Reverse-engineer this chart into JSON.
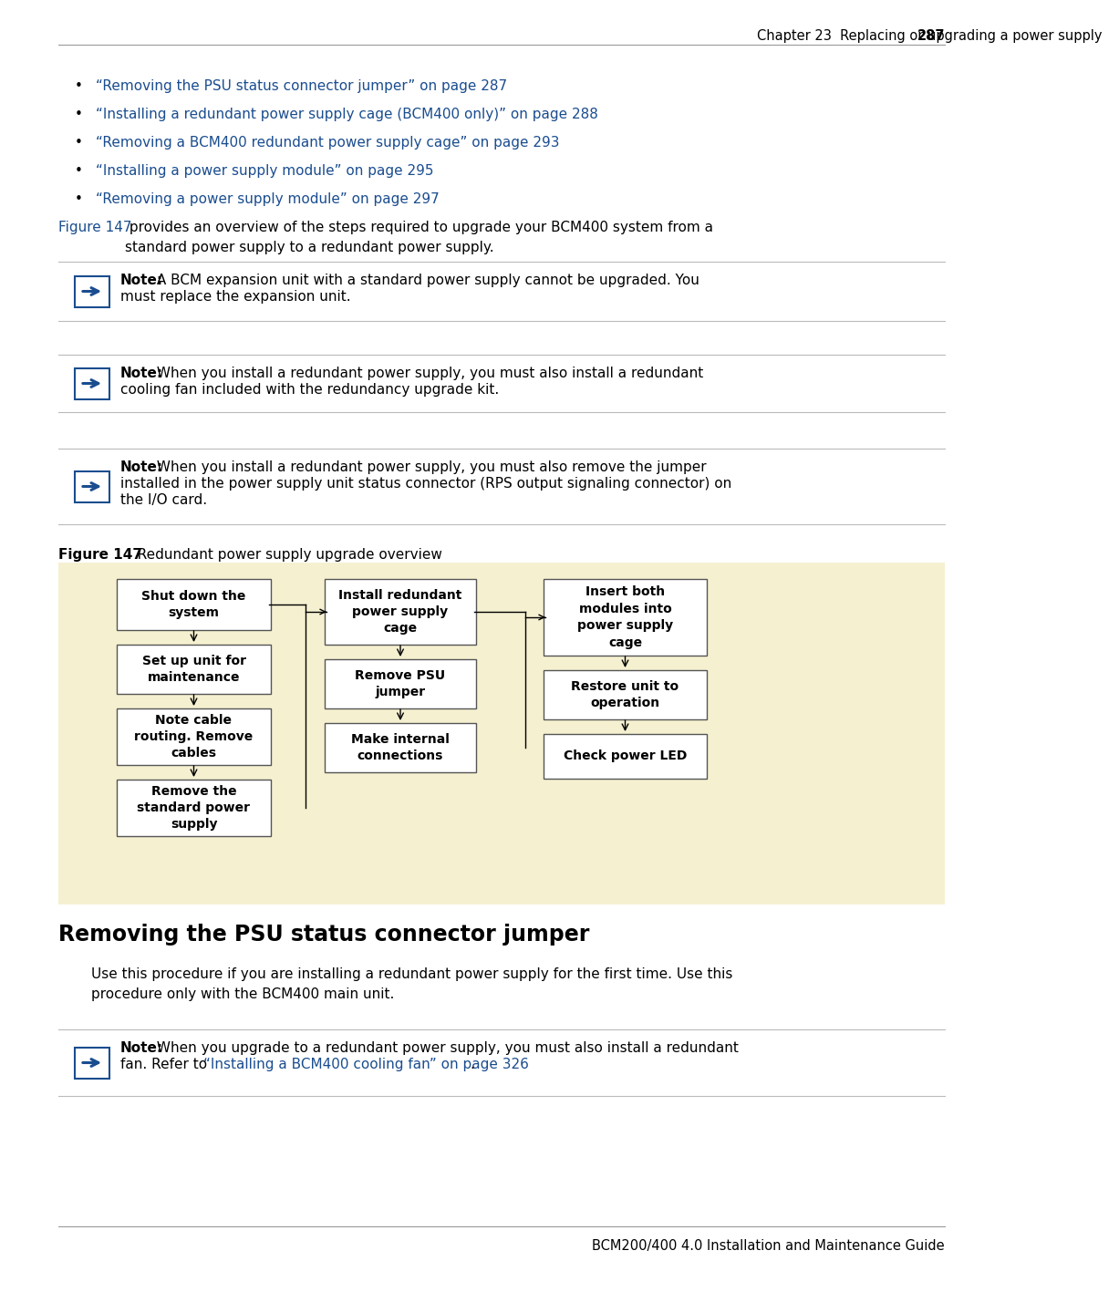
{
  "page_header_normal": "Chapter 23  Replacing or upgrading a power supply  ",
  "page_header_bold": "287",
  "bullet_links": [
    "“Removing the PSU status connector jumper” on page 287",
    "“Installing a redundant power supply cage (BCM400 only)” on page 288",
    "“Removing a BCM400 redundant power supply cage” on page 293",
    "“Installing a power supply module” on page 295",
    "“Removing a power supply module” on page 297"
  ],
  "intro_part1": "Figure 147",
  "intro_part2": " provides an overview of the steps required to upgrade your BCM400 system from a\nstandard power supply to a redundant power supply.",
  "note1_bold": "Note:",
  "note1_text": " A BCM expansion unit with a standard power supply cannot be upgraded. You\nmust replace the expansion unit.",
  "note2_bold": "Note:",
  "note2_text": " When you install a redundant power supply, you must also install a redundant\ncooling fan included with the redundancy upgrade kit.",
  "note3_bold": "Note:",
  "note3_text": " When you install a redundant power supply, you must also remove the jumper\ninstalled in the power supply unit status connector (RPS output signaling connector) on\nthe I/O card.",
  "figure_label": "Figure 147",
  "figure_caption": "   Redundant power supply upgrade overview",
  "diagram_bg": "#f5f0d0",
  "section_title": "Removing the PSU status connector jumper",
  "section_intro": "Use this procedure if you are installing a redundant power supply for the first time. Use this\nprocedure only with the BCM400 main unit.",
  "note4_bold": "Note:",
  "note4_line1": " When you upgrade to a redundant power supply, you must also install a redundant",
  "note4_line2_pre": "fan. Refer to ",
  "note4_link": "“Installing a BCM400 cooling fan” on page 326",
  "note4_end": ".",
  "footer": "BCM200/400 4.0 Installation and Maintenance Guide",
  "link_color": "#1a4d8f",
  "text_color": "#000000"
}
